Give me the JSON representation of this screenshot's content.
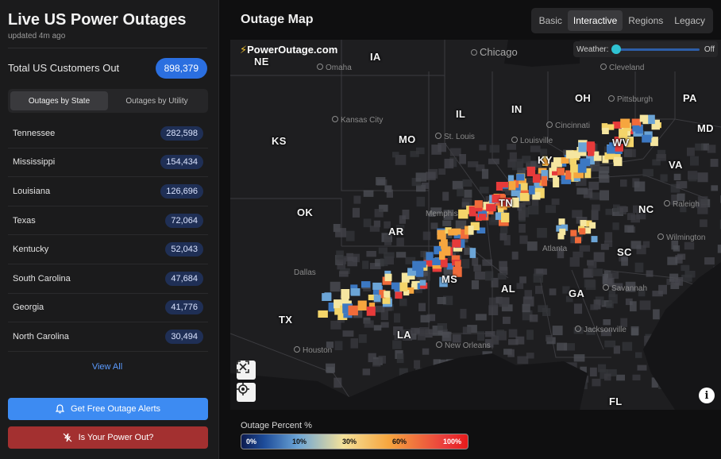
{
  "left": {
    "title": "Live US Power Outages",
    "updated": "updated 4m ago",
    "total_label": "Total US Customers Out",
    "total_value": "898,379",
    "segments": [
      "Outages by State",
      "Outages by Utility"
    ],
    "states": [
      {
        "name": "Tennessee",
        "count": "282,598"
      },
      {
        "name": "Mississippi",
        "count": "154,434"
      },
      {
        "name": "Louisiana",
        "count": "126,696"
      },
      {
        "name": "Texas",
        "count": "72,064"
      },
      {
        "name": "Kentucky",
        "count": "52,043"
      },
      {
        "name": "South Carolina",
        "count": "47,684"
      },
      {
        "name": "Georgia",
        "count": "41,776"
      },
      {
        "name": "North Carolina",
        "count": "30,494"
      }
    ],
    "view_all": "View All",
    "alerts_button": "Get Free Outage Alerts",
    "power_button": "Is Your Power Out?"
  },
  "right": {
    "title": "Outage Map",
    "tabs": [
      "Basic",
      "Interactive",
      "Regions",
      "Legacy"
    ],
    "active_tab": "Interactive",
    "brand": "PowerOutage.com",
    "weather_label": "Weather:",
    "weather_state": "Off",
    "states": [
      "NE",
      "IA",
      "IL",
      "IN",
      "OH",
      "PA",
      "MD",
      "KS",
      "MO",
      "KY",
      "WV",
      "VA",
      "OK",
      "AR",
      "TN",
      "NC",
      "SC",
      "MS",
      "AL",
      "GA",
      "TX",
      "LA",
      "FL"
    ],
    "cities": [
      "Chicago",
      "Omaha",
      "Cleveland",
      "Pittsburgh",
      "Kansas City",
      "Cincinnati",
      "St. Louis",
      "Louisville",
      "Memphis",
      "Raleigh",
      "Atlanta",
      "Wilmington",
      "Dallas",
      "Savannah",
      "Houston",
      "New Orleans",
      "Jacksonville"
    ],
    "legend_title": "Outage Percent %",
    "legend_ticks": [
      "0%",
      "10%",
      "30%",
      "60%",
      "100%"
    ],
    "colors": {
      "accent": "#3d8bf2",
      "danger": "#a33030",
      "badge": "#2b6fe0"
    }
  }
}
